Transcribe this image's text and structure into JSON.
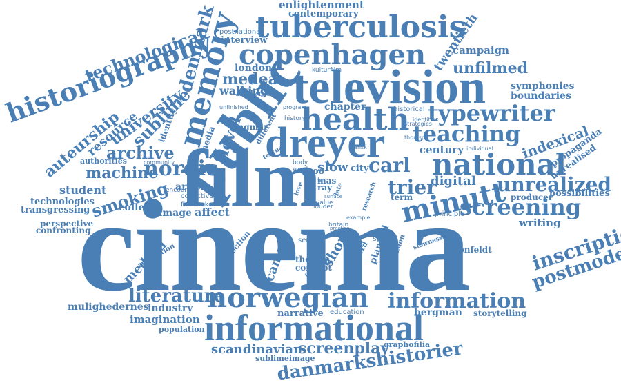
{
  "color": "#4a7fb5",
  "words": {
    "cinema": "cinema",
    "film": "film",
    "public": "public",
    "television": "television",
    "dreyer": "dreyer",
    "tuberculosis": "tuberculosis",
    "copenhagen": "copenhagen",
    "historiography": "historiography",
    "memory": "memory",
    "denmark": "denmark",
    "health": "health",
    "national": "national",
    "norwegian": "norwegian",
    "informational": "informational",
    "information": "information",
    "minutt": "minutt",
    "screening": "screening",
    "typewriter": "typewriter",
    "teaching": "teaching",
    "nordic": "nordic",
    "machine": "machine",
    "archive": "archive",
    "smoking": "smoking",
    "unrealized": "unrealized",
    "inscription": "inscription",
    "postmodern": "postmodern",
    "danmarkshistorier": "danmarkshistorier",
    "screenplay": "screenplay",
    "scandinavian": "scandinavian",
    "literature": "literature",
    "technological": "technological",
    "university": "university",
    "sublime": "sublime",
    "auteurship": "auteurship",
    "resource": "resource",
    "novel": "novel",
    "carl": "carl",
    "trier": "trier",
    "enlightenment": "enlightenment",
    "contemporary": "contemporary",
    "interview": "interview",
    "postnational": "postnational",
    "london": "london",
    "medea": "medea",
    "walking": "walking",
    "anderson": "anderson",
    "ingmar": "ingmar",
    "kulturfilm": "kulturfilm",
    "twentieth": "twentieth",
    "campaign": "campaign",
    "unfilmed": "unfilmed",
    "symphonies": "symphonies",
    "boundaries": "boundaries",
    "chapter": "chapter",
    "historical": "historical",
    "indexical": "indexical",
    "propaganda": "propaganda",
    "unrealised": "unrealised",
    "century": "century",
    "individual": "individual",
    "possibilities": "possibilities",
    "producer": "producer",
    "digital": "digital",
    "writing": "writing",
    "principle": "principle",
    "term": "term",
    "student": "student",
    "technologies": "technologies",
    "authorities": "authorities",
    "transgressing": "transgressing",
    "perspective": "perspective",
    "confronting": "confronting",
    "college": "college",
    "article": "article",
    "affect": "affect",
    "image": "image",
    "filmmaker": "filmmaker",
    "collective": "collective",
    "encounter": "encounter",
    "community": "community",
    "identity": "identity",
    "media": "media",
    "medical": "medical",
    "adaptation": "adaptation",
    "camera": "camera",
    "reflection": "reflection",
    "thomas": "thomas",
    "concept": "concept",
    "short": "short",
    "series": "series",
    "space": "space",
    "foreword": "foreword",
    "planned": "planned",
    "discussion": "discussion",
    "slowness": "slowness",
    "grønfeldt": "grønfeldt",
    "industry": "industry",
    "mulighedernes": "mulighedernes",
    "imagination": "imagination",
    "population": "population",
    "narrative": "narrative",
    "education": "education",
    "bergman": "bergman",
    "storytelling": "storytelling",
    "graphofilia": "graphofilia",
    "sublimeimage": "sublimeimage",
    "slow": "slow",
    "city": "city",
    "roo": "roo",
    "mas": "mas",
    "ray": "ray",
    "lar": "lar",
    "word": "word",
    "body": "body",
    "britain": "britain",
    "louder": "louder",
    "value": "value",
    "example": "example",
    "dansk": "dansk",
    "thomson": "thomson",
    "identities": "identities",
    "strategies": "strategies",
    "program": "program",
    "unfinished": "unfinished",
    "history": "history",
    "different": "different",
    "textual": "textual",
    "general": "general",
    "engage": "engage",
    "practice": "practice",
    "love": "love",
    "research": "research",
    "surface": "surface",
    "late": "late"
  }
}
